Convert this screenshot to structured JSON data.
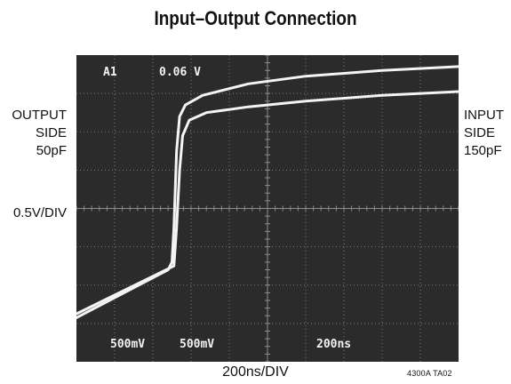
{
  "title": "Input–Output Connection",
  "left_label": {
    "lines": [
      "OUTPUT",
      "SIDE",
      "50pF"
    ],
    "scale": "0.5V/DIV"
  },
  "right_label": {
    "lines": [
      "INPUT",
      "SIDE",
      "150pF"
    ]
  },
  "xlabel": "200ns/DIV",
  "figure_id": "4300A TA02",
  "scope": {
    "cursor": "A1",
    "level": "0.06 V",
    "ch1_scale": "500mV",
    "ch2_scale": "500mV",
    "timebase": "200ns",
    "colors": {
      "screen": "#2b2b2b",
      "grid": "#8c8c8c",
      "trace": "#f4f4f4"
    }
  },
  "chart_data": {
    "type": "line",
    "x_unit": "div",
    "y_unit": "div",
    "xlim": [
      0,
      10
    ],
    "ylim": [
      0,
      8
    ],
    "grid": true,
    "series": [
      {
        "name": "OUTPUT SIDE 50pF",
        "points": [
          [
            0,
            1.15
          ],
          [
            2.4,
            2.4
          ],
          [
            2.5,
            2.6
          ],
          [
            2.55,
            3.5
          ],
          [
            2.62,
            5.5
          ],
          [
            2.7,
            6.4
          ],
          [
            2.85,
            6.7
          ],
          [
            3.3,
            6.95
          ],
          [
            4.5,
            7.25
          ],
          [
            6,
            7.45
          ],
          [
            8,
            7.6
          ],
          [
            10,
            7.7
          ]
        ]
      },
      {
        "name": "INPUT SIDE 150pF",
        "points": [
          [
            0,
            1.25
          ],
          [
            2.55,
            2.5
          ],
          [
            2.62,
            3.5
          ],
          [
            2.7,
            5.0
          ],
          [
            2.78,
            5.9
          ],
          [
            2.95,
            6.3
          ],
          [
            3.4,
            6.5
          ],
          [
            4.5,
            6.65
          ],
          [
            6,
            6.8
          ],
          [
            8,
            6.95
          ],
          [
            10,
            7.05
          ]
        ]
      }
    ]
  }
}
